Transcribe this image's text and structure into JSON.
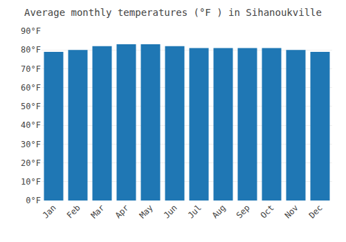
{
  "chart_data": {
    "type": "bar",
    "title": "Average monthly temperatures (°F ) in Sihanoukville",
    "categories": [
      "Jan",
      "Feb",
      "Mar",
      "Apr",
      "May",
      "Jun",
      "Jul",
      "Aug",
      "Sep",
      "Oct",
      "Nov",
      "Dec"
    ],
    "values": [
      79,
      80,
      82,
      83,
      83,
      82,
      81,
      81,
      81,
      81,
      80,
      79
    ],
    "ylim": [
      0,
      90
    ],
    "yticks": [
      {
        "value": 0,
        "label": "0°F"
      },
      {
        "value": 10,
        "label": "10°F"
      },
      {
        "value": 20,
        "label": "20°F"
      },
      {
        "value": 30,
        "label": "30°F"
      },
      {
        "value": 40,
        "label": "40°F"
      },
      {
        "value": 50,
        "label": "50°F"
      },
      {
        "value": 60,
        "label": "60°F"
      },
      {
        "value": 70,
        "label": "70°F"
      },
      {
        "value": 80,
        "label": "80°F"
      },
      {
        "value": 90,
        "label": "90°F"
      }
    ],
    "grid": true
  }
}
